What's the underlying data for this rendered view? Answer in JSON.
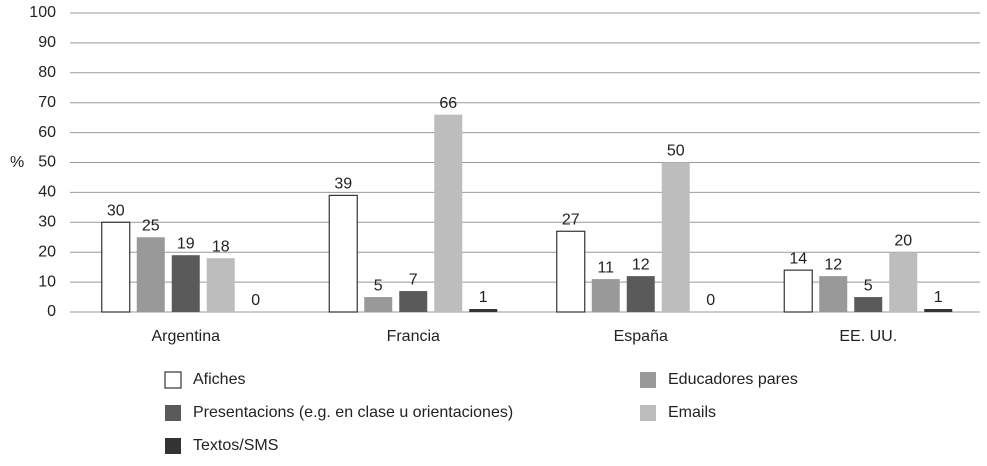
{
  "chart_data": {
    "type": "bar",
    "y_label": "%",
    "categories": [
      "Argentina",
      "Francia",
      "España",
      "EE. UU."
    ],
    "series": [
      {
        "name": "Afiches",
        "color": "#ffffff",
        "values": [
          30,
          39,
          27,
          14
        ]
      },
      {
        "name": "Educadores pares",
        "color": "#999999",
        "values": [
          25,
          5,
          11,
          12
        ]
      },
      {
        "name": "Presentacions (e.g. en clase u orientaciones)",
        "color": "#5a5a5a",
        "values": [
          19,
          7,
          12,
          5
        ]
      },
      {
        "name": "Emails",
        "color": "#bdbdbd",
        "values": [
          18,
          66,
          50,
          20
        ]
      },
      {
        "name": "Textos/SMS",
        "color": "#333333",
        "values": [
          0,
          1,
          0,
          1
        ]
      }
    ],
    "ylim": [
      0,
      100
    ],
    "yticks": [
      0,
      10,
      20,
      30,
      40,
      50,
      60,
      70,
      80,
      90,
      100
    ],
    "grid": true,
    "legend": "bottom"
  }
}
